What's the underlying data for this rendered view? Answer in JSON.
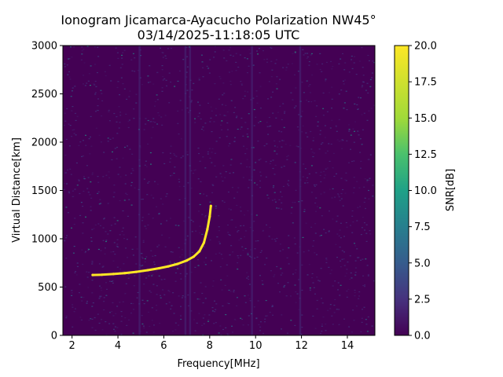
{
  "chart_data": {
    "type": "heatmap",
    "title": "Ionogram Jicamarca-Ayacucho Polarization NW45°",
    "subtitle": "03/14/2025-11:18:05 UTC",
    "xlabel": "Frequency[MHz]",
    "ylabel": "Virtual Distance[km]",
    "xlim": [
      1.6,
      15.2
    ],
    "ylim": [
      0,
      3000
    ],
    "xticks": [
      2,
      4,
      6,
      8,
      10,
      12,
      14
    ],
    "xtick_labels": [
      "2",
      "4",
      "6",
      "8",
      "10",
      "12",
      "14"
    ],
    "yticks": [
      0,
      500,
      1000,
      1500,
      2000,
      2500,
      3000
    ],
    "ytick_labels": [
      "0",
      "500",
      "1000",
      "1500",
      "2000",
      "2500",
      "3000"
    ],
    "grid": false,
    "colormap": "viridis",
    "colorbar": {
      "label": "SNR[dB]",
      "range": [
        0.0,
        20.0
      ],
      "ticks": [
        0.0,
        2.5,
        5.0,
        7.5,
        10.0,
        12.5,
        15.0,
        17.5,
        20.0
      ],
      "tick_labels": [
        "0.0",
        "2.5",
        "5.0",
        "7.5",
        "10.0",
        "12.5",
        "15.0",
        "17.5",
        "20.0"
      ]
    },
    "background_snr": 0.5,
    "trace": {
      "name": "",
      "snr": 20,
      "points": [
        {
          "f": 2.9,
          "d": 625
        },
        {
          "f": 3.3,
          "d": 628
        },
        {
          "f": 3.8,
          "d": 635
        },
        {
          "f": 4.3,
          "d": 645
        },
        {
          "f": 4.8,
          "d": 658
        },
        {
          "f": 5.3,
          "d": 675
        },
        {
          "f": 5.8,
          "d": 695
        },
        {
          "f": 6.2,
          "d": 715
        },
        {
          "f": 6.6,
          "d": 740
        },
        {
          "f": 7.0,
          "d": 775
        },
        {
          "f": 7.3,
          "d": 815
        },
        {
          "f": 7.55,
          "d": 870
        },
        {
          "f": 7.75,
          "d": 960
        },
        {
          "f": 7.9,
          "d": 1100
        },
        {
          "f": 8.0,
          "d": 1230
        },
        {
          "f": 8.05,
          "d": 1340
        }
      ]
    }
  }
}
